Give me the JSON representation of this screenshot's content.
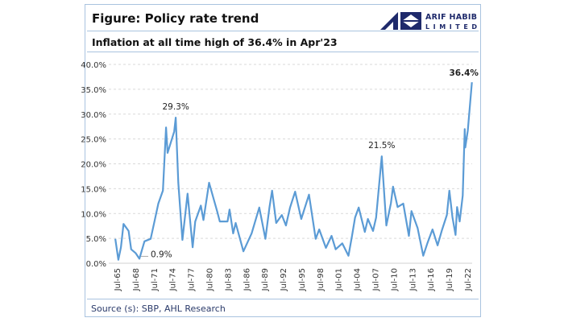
{
  "header": {
    "title": "Figure: Policy rate trend",
    "subtitle": "Inflation at all time high of 36.4% in Apr'23",
    "logo_text": "ARIF HABIB LIMITED"
  },
  "footer": {
    "source": "Source (s): SBP, AHL Research"
  },
  "colors": {
    "line": "#5b9bd5",
    "frame": "#a9c3df",
    "logo": "#1f2a6b"
  },
  "chart_data": {
    "type": "line",
    "title": "Inflation at all time high of 36.4% in Apr'23",
    "ylim": [
      0,
      40
    ],
    "y_ticks": [
      "0.0%",
      "5.0%",
      "10.0%",
      "15.0%",
      "20.0%",
      "25.0%",
      "30.0%",
      "35.0%",
      "40.0%"
    ],
    "x_ticks": [
      "Jul-65",
      "Jul-68",
      "Jul-71",
      "Jul-74",
      "Jul-77",
      "Jul-80",
      "Jul-83",
      "Jul-86",
      "Jul-89",
      "Jul-92",
      "Jul-95",
      "Jul-98",
      "Jul-01",
      "Jul-04",
      "Jul-07",
      "Jul-10",
      "Jul-13",
      "Jul-16",
      "Jul-19",
      "Jul-22"
    ],
    "grid": "horizontal dashed",
    "annotations": [
      {
        "date": "1969-03",
        "value": 0.9,
        "label": "0.9%"
      },
      {
        "date": "1975-02",
        "value": 29.3,
        "label": "29.3%"
      },
      {
        "date": "2008-08",
        "value": 21.5,
        "label": "21.5%"
      },
      {
        "date": "2023-04",
        "value": 36.4,
        "label": "36.4%"
      }
    ],
    "series": [
      {
        "points": [
          [
            "1965-04",
            4.9
          ],
          [
            "1965-10",
            0.7
          ],
          [
            "1966-03",
            3.2
          ],
          [
            "1966-08",
            7.9
          ],
          [
            "1967-06",
            6.5
          ],
          [
            "1967-11",
            2.8
          ],
          [
            "1968-08",
            2.0
          ],
          [
            "1969-03",
            0.9
          ],
          [
            "1970-01",
            4.4
          ],
          [
            "1971-01",
            4.9
          ],
          [
            "1971-09",
            8.7
          ],
          [
            "1972-04",
            12.0
          ],
          [
            "1973-01",
            14.6
          ],
          [
            "1973-07",
            27.3
          ],
          [
            "1973-10",
            22.2
          ],
          [
            "1974-11",
            26.5
          ],
          [
            "1975-02",
            29.3
          ],
          [
            "1975-07",
            16.2
          ],
          [
            "1976-03",
            4.7
          ],
          [
            "1977-01",
            14.0
          ],
          [
            "1977-06",
            8.7
          ],
          [
            "1977-11",
            3.2
          ],
          [
            "1978-04",
            8.4
          ],
          [
            "1979-03",
            11.6
          ],
          [
            "1979-08",
            8.7
          ],
          [
            "1980-07",
            16.2
          ],
          [
            "1981-11",
            10.4
          ],
          [
            "1982-04",
            8.4
          ],
          [
            "1983-07",
            8.4
          ],
          [
            "1983-11",
            10.8
          ],
          [
            "1984-06",
            6.0
          ],
          [
            "1984-11",
            8.1
          ],
          [
            "1986-02",
            2.4
          ],
          [
            "1987-06",
            6.0
          ],
          [
            "1988-09",
            11.2
          ],
          [
            "1989-09",
            4.9
          ],
          [
            "1990-05",
            11.3
          ],
          [
            "1990-10",
            14.6
          ],
          [
            "1991-06",
            8.1
          ],
          [
            "1992-05",
            9.7
          ],
          [
            "1993-01",
            7.6
          ],
          [
            "1993-09",
            11.2
          ],
          [
            "1994-07",
            14.4
          ],
          [
            "1995-07",
            8.9
          ],
          [
            "1996-10",
            13.8
          ],
          [
            "1997-11",
            4.9
          ],
          [
            "1998-06",
            6.8
          ],
          [
            "1999-07",
            3.1
          ],
          [
            "2000-06",
            5.5
          ],
          [
            "2001-02",
            2.8
          ],
          [
            "2002-03",
            4.0
          ],
          [
            "2003-03",
            1.5
          ],
          [
            "2003-10",
            5.5
          ],
          [
            "2004-04",
            9.2
          ],
          [
            "2004-11",
            11.2
          ],
          [
            "2005-11",
            6.3
          ],
          [
            "2006-05",
            8.9
          ],
          [
            "2007-03",
            6.5
          ],
          [
            "2007-09",
            9.2
          ],
          [
            "2008-08",
            21.5
          ],
          [
            "2009-05",
            7.6
          ],
          [
            "2010-02",
            12.1
          ],
          [
            "2010-06",
            15.4
          ],
          [
            "2011-03",
            11.3
          ],
          [
            "2012-02",
            12.0
          ],
          [
            "2013-01",
            5.5
          ],
          [
            "2013-06",
            10.5
          ],
          [
            "2014-06",
            7.1
          ],
          [
            "2015-05",
            1.5
          ],
          [
            "2016-01",
            4.0
          ],
          [
            "2016-11",
            6.8
          ],
          [
            "2017-09",
            3.6
          ],
          [
            "2018-05",
            6.5
          ],
          [
            "2019-03",
            9.7
          ],
          [
            "2019-08",
            14.6
          ],
          [
            "2020-02",
            9.2
          ],
          [
            "2020-08",
            5.7
          ],
          [
            "2020-11",
            11.3
          ],
          [
            "2021-04",
            8.4
          ],
          [
            "2021-10",
            13.6
          ],
          [
            "2022-02",
            27.0
          ],
          [
            "2022-03",
            23.3
          ],
          [
            "2022-08",
            26.7
          ],
          [
            "2023-04",
            36.4
          ]
        ]
      }
    ]
  }
}
